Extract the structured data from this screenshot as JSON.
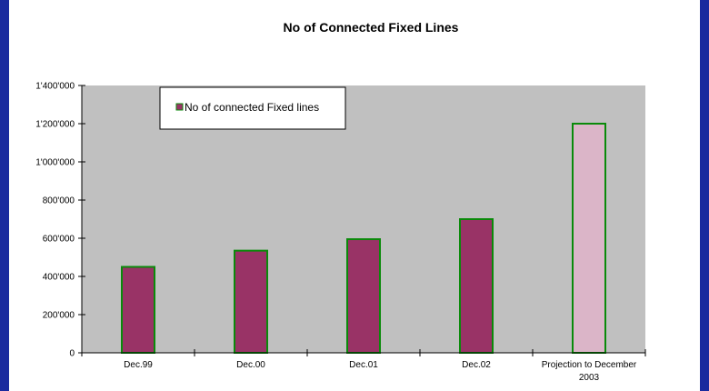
{
  "colors": {
    "page_background": "#1a2a9e",
    "plot_background": "#c0c0c0",
    "bar_fill": "#993366",
    "projection_fill": "#dbb5c8",
    "bar_border": "#0a8a0a"
  },
  "chart_data": {
    "type": "bar",
    "title": "No of Connected Fixed Lines",
    "xlabel": "",
    "ylabel": "",
    "categories": [
      "Dec.99",
      "Dec.00",
      "Dec.01",
      "Dec.02",
      "Projection to December 2003"
    ],
    "category_label_lines": [
      [
        "Dec.99"
      ],
      [
        "Dec.00"
      ],
      [
        "Dec.01"
      ],
      [
        "Dec.02"
      ],
      [
        "Projection to December",
        "2003"
      ]
    ],
    "series": [
      {
        "name": "No of connected Fixed lines",
        "values": [
          450000,
          535000,
          595000,
          700000,
          1200000
        ]
      }
    ],
    "projection_index": 4,
    "ylim": [
      0,
      1400000
    ],
    "yticks": [
      0,
      200000,
      400000,
      600000,
      800000,
      1000000,
      1200000,
      1400000
    ],
    "ytick_labels": [
      "0",
      "200'000",
      "400'000",
      "600'000",
      "800'000",
      "1'000'000",
      "1'200'000",
      "1'400'000"
    ],
    "grid": false,
    "legend_position": "top-left"
  }
}
